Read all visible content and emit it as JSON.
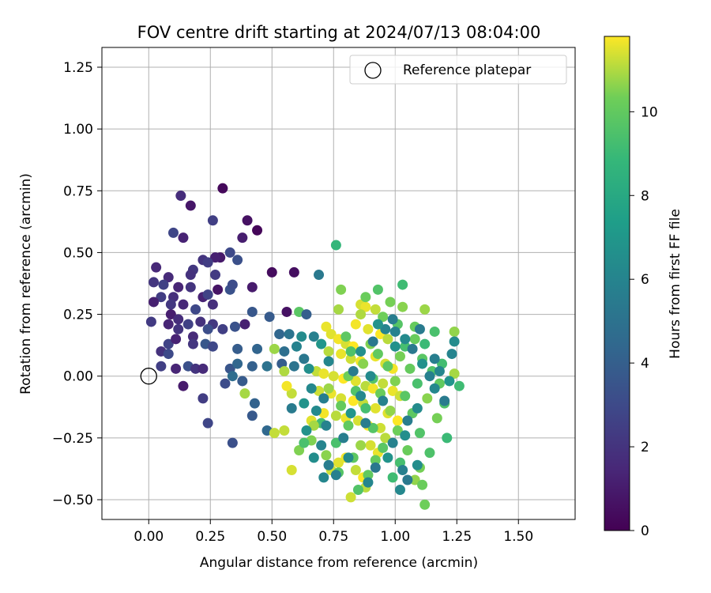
{
  "chart_data": {
    "type": "scatter",
    "title": "FOV centre drift starting at 2024/07/13 08:04:00",
    "xlabel": "Angular distance from reference (arcmin)",
    "ylabel": "Rotation from reference (arcmin)",
    "xlim": [
      -0.19,
      1.73
    ],
    "ylim": [
      -0.58,
      1.33
    ],
    "xticks": [
      "0.00",
      "0.25",
      "0.50",
      "0.75",
      "1.00",
      "1.25",
      "1.50"
    ],
    "xtick_values": [
      0,
      0.25,
      0.5,
      0.75,
      1.0,
      1.25,
      1.5
    ],
    "yticks": [
      "−0.50",
      "−0.25",
      "0.00",
      "0.25",
      "0.50",
      "0.75",
      "1.00",
      "1.25"
    ],
    "ytick_values": [
      -0.5,
      -0.25,
      0,
      0.25,
      0.5,
      0.75,
      1.0,
      1.25
    ],
    "grid": true,
    "legend": {
      "placement": "top-right",
      "label": "Reference platepar"
    },
    "reference_point": {
      "x": 0.0,
      "y": 0.0
    },
    "colorbar": {
      "label": "Hours from first FF file",
      "range": [
        0,
        11.8
      ],
      "ticks": [
        "0",
        "2",
        "4",
        "6",
        "8",
        "10"
      ],
      "tick_values": [
        0,
        2,
        4,
        6,
        8,
        10
      ],
      "colormap": "viridis"
    },
    "point_columns": [
      "x",
      "y",
      "hours"
    ],
    "points": [
      [
        0.3,
        0.76,
        0.3
      ],
      [
        0.13,
        0.73,
        1.7
      ],
      [
        0.17,
        0.69,
        0.8
      ],
      [
        0.26,
        0.63,
        2.5
      ],
      [
        0.4,
        0.63,
        0.6
      ],
      [
        0.44,
        0.59,
        0.2
      ],
      [
        0.1,
        0.58,
        2.8
      ],
      [
        0.14,
        0.56,
        1.3
      ],
      [
        0.38,
        0.56,
        1.1
      ],
      [
        0.33,
        0.5,
        3.0
      ],
      [
        0.29,
        0.48,
        0.9
      ],
      [
        0.27,
        0.48,
        1.2
      ],
      [
        0.22,
        0.47,
        2.0
      ],
      [
        0.36,
        0.47,
        3.3
      ],
      [
        0.24,
        0.46,
        2.4
      ],
      [
        0.18,
        0.43,
        2.2
      ],
      [
        0.03,
        0.44,
        1.5
      ],
      [
        0.17,
        0.41,
        1.9
      ],
      [
        0.08,
        0.4,
        1.6
      ],
      [
        0.27,
        0.41,
        2.3
      ],
      [
        0.5,
        0.42,
        0.4
      ],
      [
        0.59,
        0.42,
        0.5
      ],
      [
        0.02,
        0.38,
        2.1
      ],
      [
        0.06,
        0.37,
        2.6
      ],
      [
        0.12,
        0.36,
        1.4
      ],
      [
        0.17,
        0.36,
        2.0
      ],
      [
        0.28,
        0.35,
        0.7
      ],
      [
        0.33,
        0.35,
        3.4
      ],
      [
        0.42,
        0.36,
        1.0
      ],
      [
        0.05,
        0.32,
        2.4
      ],
      [
        0.1,
        0.32,
        1.8
      ],
      [
        0.22,
        0.32,
        1.3
      ],
      [
        0.24,
        0.33,
        2.7
      ],
      [
        0.34,
        0.37,
        3.1
      ],
      [
        0.69,
        0.41,
        5.4
      ],
      [
        0.02,
        0.3,
        1.2
      ],
      [
        0.09,
        0.29,
        2.2
      ],
      [
        0.14,
        0.29,
        1.5
      ],
      [
        0.19,
        0.27,
        2.9
      ],
      [
        0.26,
        0.29,
        1.8
      ],
      [
        0.42,
        0.26,
        3.6
      ],
      [
        0.56,
        0.26,
        0.6
      ],
      [
        0.61,
        0.26,
        9.8
      ],
      [
        0.64,
        0.25,
        4.0
      ],
      [
        0.09,
        0.25,
        1.1
      ],
      [
        0.12,
        0.23,
        1.7
      ],
      [
        0.01,
        0.22,
        2.3
      ],
      [
        0.08,
        0.21,
        1.4
      ],
      [
        0.16,
        0.21,
        2.6
      ],
      [
        0.21,
        0.22,
        1.9
      ],
      [
        0.26,
        0.21,
        2.2
      ],
      [
        0.35,
        0.2,
        3.4
      ],
      [
        0.39,
        0.21,
        1.2
      ],
      [
        0.49,
        0.24,
        3.8
      ],
      [
        0.53,
        0.17,
        4.4
      ],
      [
        0.12,
        0.19,
        2.0
      ],
      [
        0.18,
        0.16,
        1.6
      ],
      [
        0.24,
        0.19,
        3.2
      ],
      [
        0.3,
        0.19,
        2.5
      ],
      [
        0.57,
        0.17,
        5.1
      ],
      [
        0.08,
        0.13,
        2.7
      ],
      [
        0.11,
        0.15,
        1.3
      ],
      [
        0.18,
        0.13,
        2.1
      ],
      [
        0.23,
        0.13,
        3.6
      ],
      [
        0.26,
        0.12,
        2.9
      ],
      [
        0.05,
        0.1,
        1.9
      ],
      [
        0.08,
        0.09,
        3.0
      ],
      [
        0.36,
        0.11,
        3.9
      ],
      [
        0.44,
        0.11,
        4.3
      ],
      [
        0.51,
        0.11,
        10.8
      ],
      [
        0.55,
        0.1,
        4.8
      ],
      [
        0.05,
        0.04,
        2.5
      ],
      [
        0.11,
        0.03,
        1.4
      ],
      [
        0.16,
        0.04,
        3.3
      ],
      [
        0.19,
        0.03,
        2.0
      ],
      [
        0.22,
        0.03,
        1.6
      ],
      [
        0.33,
        0.03,
        3.5
      ],
      [
        0.36,
        0.05,
        4.4
      ],
      [
        0.42,
        0.04,
        4.1
      ],
      [
        0.48,
        0.04,
        5.0
      ],
      [
        0.54,
        0.05,
        3.9
      ],
      [
        0.34,
        0.0,
        4.7
      ],
      [
        0.38,
        -0.02,
        3.8
      ],
      [
        0.31,
        -0.03,
        3.1
      ],
      [
        0.14,
        -0.04,
        1.0
      ],
      [
        0.22,
        -0.09,
        2.4
      ],
      [
        0.39,
        -0.07,
        10.9
      ],
      [
        0.43,
        -0.11,
        4.2
      ],
      [
        0.42,
        -0.16,
        3.7
      ],
      [
        0.24,
        -0.19,
        2.8
      ],
      [
        0.48,
        -0.22,
        4.5
      ],
      [
        0.51,
        -0.23,
        11.2
      ],
      [
        0.34,
        -0.27,
        3.3
      ],
      [
        0.76,
        0.53,
        8.8
      ],
      [
        0.72,
        0.2,
        11.6
      ],
      [
        0.74,
        0.17,
        11.5
      ],
      [
        0.77,
        0.15,
        11.7
      ],
      [
        0.8,
        0.13,
        11.4
      ],
      [
        0.83,
        0.12,
        11.8
      ],
      [
        0.7,
        0.13,
        10.9
      ],
      [
        0.73,
        0.1,
        11.1
      ],
      [
        0.78,
        0.09,
        11.6
      ],
      [
        0.82,
        0.07,
        11.3
      ],
      [
        0.86,
        0.06,
        11.7
      ],
      [
        0.68,
        0.02,
        11.2
      ],
      [
        0.71,
        0.01,
        11.6
      ],
      [
        0.75,
        0.0,
        11.4
      ],
      [
        0.79,
        -0.01,
        11.8
      ],
      [
        0.84,
        -0.02,
        11.5
      ],
      [
        0.88,
        -0.04,
        11.1
      ],
      [
        0.91,
        -0.05,
        11.7
      ],
      [
        0.69,
        -0.06,
        11.3
      ],
      [
        0.74,
        -0.07,
        11.6
      ],
      [
        0.78,
        -0.09,
        11.4
      ],
      [
        0.83,
        -0.1,
        11.8
      ],
      [
        0.87,
        -0.11,
        11.2
      ],
      [
        0.92,
        -0.13,
        11.5
      ],
      [
        0.71,
        -0.15,
        11.7
      ],
      [
        0.76,
        -0.16,
        11.1
      ],
      [
        0.8,
        -0.17,
        11.6
      ],
      [
        0.85,
        -0.18,
        11.4
      ],
      [
        0.89,
        -0.2,
        11.8
      ],
      [
        0.94,
        -0.21,
        11.3
      ],
      [
        0.66,
        -0.18,
        11.5
      ],
      [
        0.58,
        -0.07,
        11.2
      ],
      [
        0.56,
        -0.04,
        11.7
      ],
      [
        0.55,
        0.02,
        11.0
      ],
      [
        0.55,
        -0.22,
        11.2
      ],
      [
        0.58,
        -0.38,
        11.4
      ],
      [
        0.87,
        -0.41,
        11.8
      ],
      [
        0.88,
        -0.45,
        11.1
      ],
      [
        0.82,
        -0.49,
        11.3
      ],
      [
        0.86,
        0.29,
        11.4
      ],
      [
        0.88,
        0.28,
        11.6
      ],
      [
        0.92,
        0.27,
        11.2
      ],
      [
        0.84,
        0.21,
        11.7
      ],
      [
        0.89,
        0.19,
        11.5
      ],
      [
        0.94,
        0.17,
        11.8
      ],
      [
        0.97,
        0.15,
        11.1
      ],
      [
        0.92,
        0.08,
        11.6
      ],
      [
        0.96,
        0.05,
        11.4
      ],
      [
        0.99,
        0.03,
        11.7
      ],
      [
        0.95,
        -0.03,
        11.2
      ],
      [
        0.99,
        -0.06,
        11.6
      ],
      [
        1.02,
        -0.08,
        11.3
      ],
      [
        0.97,
        -0.15,
        11.5
      ],
      [
        1.01,
        -0.18,
        11.8
      ],
      [
        0.9,
        -0.28,
        11.4
      ],
      [
        0.93,
        -0.31,
        11.6
      ],
      [
        0.96,
        -0.25,
        11.1
      ],
      [
        0.8,
        -0.33,
        11.7
      ],
      [
        0.74,
        -0.38,
        11.3
      ],
      [
        0.77,
        -0.35,
        11.5
      ],
      [
        0.84,
        -0.38,
        11.2
      ],
      [
        0.78,
        0.35,
        10.5
      ],
      [
        0.88,
        0.32,
        10.2
      ],
      [
        0.93,
        0.35,
        9.6
      ],
      [
        0.98,
        0.3,
        10.4
      ],
      [
        1.03,
        0.37,
        9.1
      ],
      [
        1.03,
        0.28,
        10.6
      ],
      [
        1.12,
        0.27,
        10.8
      ],
      [
        0.77,
        0.27,
        10.9
      ],
      [
        0.86,
        0.25,
        11.0
      ],
      [
        0.95,
        0.24,
        10.3
      ],
      [
        1.01,
        0.21,
        9.7
      ],
      [
        1.08,
        0.2,
        10.1
      ],
      [
        1.16,
        0.18,
        9.4
      ],
      [
        1.24,
        0.18,
        10.7
      ],
      [
        0.8,
        0.16,
        9.9
      ],
      [
        0.9,
        0.13,
        10.5
      ],
      [
        1.04,
        0.12,
        9.3
      ],
      [
        1.08,
        0.15,
        10.2
      ],
      [
        1.12,
        0.13,
        9.0
      ],
      [
        0.82,
        0.1,
        9.5
      ],
      [
        0.93,
        0.09,
        10.0
      ],
      [
        1.02,
        0.08,
        10.4
      ],
      [
        1.11,
        0.07,
        9.8
      ],
      [
        1.19,
        0.05,
        9.2
      ],
      [
        0.87,
        0.05,
        10.6
      ],
      [
        0.97,
        0.04,
        9.9
      ],
      [
        1.06,
        0.03,
        10.1
      ],
      [
        1.15,
        0.02,
        9.6
      ],
      [
        1.24,
        0.01,
        10.9
      ],
      [
        0.81,
        0.0,
        10.3
      ],
      [
        0.91,
        -0.01,
        9.7
      ],
      [
        1.0,
        -0.02,
        10.5
      ],
      [
        1.09,
        -0.03,
        9.4
      ],
      [
        1.18,
        -0.03,
        10.0
      ],
      [
        1.26,
        -0.04,
        9.1
      ],
      [
        0.73,
        -0.05,
        10.8
      ],
      [
        0.84,
        -0.06,
        9.6
      ],
      [
        0.94,
        -0.07,
        10.2
      ],
      [
        1.04,
        -0.08,
        9.8
      ],
      [
        1.13,
        -0.09,
        10.6
      ],
      [
        1.2,
        -0.11,
        9.5
      ],
      [
        0.78,
        -0.12,
        10.1
      ],
      [
        0.88,
        -0.13,
        9.3
      ],
      [
        0.98,
        -0.14,
        10.7
      ],
      [
        1.07,
        -0.15,
        9.9
      ],
      [
        1.17,
        -0.17,
        10.4
      ],
      [
        0.7,
        -0.19,
        9.2
      ],
      [
        0.81,
        -0.2,
        10.0
      ],
      [
        0.91,
        -0.21,
        9.7
      ],
      [
        1.01,
        -0.22,
        10.3
      ],
      [
        1.1,
        -0.23,
        9.6
      ],
      [
        1.21,
        -0.25,
        9.0
      ],
      [
        0.66,
        -0.26,
        10.5
      ],
      [
        0.76,
        -0.27,
        9.4
      ],
      [
        0.86,
        -0.28,
        10.8
      ],
      [
        0.95,
        -0.29,
        9.8
      ],
      [
        1.05,
        -0.3,
        10.2
      ],
      [
        1.14,
        -0.31,
        9.5
      ],
      [
        0.72,
        -0.32,
        10.6
      ],
      [
        0.83,
        -0.33,
        9.9
      ],
      [
        0.92,
        -0.34,
        10.1
      ],
      [
        1.02,
        -0.35,
        9.3
      ],
      [
        1.1,
        -0.37,
        10.4
      ],
      [
        0.77,
        -0.39,
        9.7
      ],
      [
        0.89,
        -0.4,
        10.0
      ],
      [
        0.99,
        -0.41,
        9.1
      ],
      [
        1.08,
        -0.42,
        10.7
      ],
      [
        0.85,
        -0.46,
        9.6
      ],
      [
        1.12,
        -0.52,
        10.3
      ],
      [
        0.61,
        -0.3,
        10.5
      ],
      [
        0.63,
        -0.27,
        9.4
      ],
      [
        0.67,
        -0.2,
        10.9
      ],
      [
        1.11,
        -0.44,
        10.2
      ],
      [
        0.62,
        0.16,
        6.4
      ],
      [
        0.67,
        0.16,
        5.8
      ],
      [
        0.7,
        0.13,
        6.9
      ],
      [
        0.73,
        0.06,
        6.1
      ],
      [
        0.63,
        0.07,
        5.3
      ],
      [
        0.6,
        0.12,
        5.9
      ],
      [
        0.65,
        0.03,
        6.6
      ],
      [
        0.59,
        0.04,
        5.1
      ],
      [
        0.66,
        -0.05,
        6.2
      ],
      [
        0.71,
        -0.09,
        5.7
      ],
      [
        0.63,
        -0.11,
        6.8
      ],
      [
        0.58,
        -0.13,
        5.5
      ],
      [
        0.68,
        -0.14,
        6.3
      ],
      [
        0.72,
        -0.2,
        5.9
      ],
      [
        0.64,
        -0.22,
        6.7
      ],
      [
        0.7,
        -0.28,
        6.0
      ],
      [
        0.67,
        -0.33,
        6.5
      ],
      [
        0.73,
        -0.36,
        5.6
      ],
      [
        0.71,
        -0.41,
        6.1
      ],
      [
        0.76,
        -0.4,
        5.8
      ],
      [
        0.81,
        -0.33,
        6.4
      ],
      [
        0.79,
        -0.25,
        5.7
      ],
      [
        0.82,
        -0.15,
        6.9
      ],
      [
        0.86,
        -0.08,
        6.2
      ],
      [
        0.83,
        0.02,
        5.5
      ],
      [
        0.86,
        0.1,
        6.6
      ],
      [
        0.91,
        0.14,
        5.3
      ],
      [
        0.96,
        0.19,
        6.0
      ],
      [
        0.99,
        0.23,
        5.6
      ],
      [
        0.93,
        0.21,
        6.8
      ],
      [
        1.0,
        0.18,
        5.9
      ],
      [
        1.04,
        0.15,
        6.3
      ],
      [
        1.07,
        0.11,
        5.4
      ],
      [
        1.11,
        0.05,
        6.7
      ],
      [
        1.14,
        0.0,
        5.8
      ],
      [
        1.16,
        -0.05,
        6.2
      ],
      [
        1.2,
        -0.1,
        5.5
      ],
      [
        1.22,
        -0.02,
        6.9
      ],
      [
        1.18,
        0.02,
        6.1
      ],
      [
        1.16,
        0.07,
        5.7
      ],
      [
        1.09,
        -0.13,
        6.4
      ],
      [
        1.05,
        -0.18,
        5.6
      ],
      [
        1.04,
        -0.24,
        6.6
      ],
      [
        0.99,
        -0.27,
        5.9
      ],
      [
        0.97,
        -0.33,
        6.8
      ],
      [
        0.92,
        -0.37,
        5.3
      ],
      [
        0.89,
        -0.43,
        6.1
      ],
      [
        1.03,
        -0.38,
        5.8
      ],
      [
        1.09,
        -0.36,
        6.5
      ],
      [
        1.05,
        -0.42,
        5.4
      ],
      [
        1.02,
        -0.46,
        6.2
      ],
      [
        1.0,
        0.12,
        6.7
      ],
      [
        1.1,
        0.19,
        5.5
      ],
      [
        1.23,
        0.09,
        6.0
      ],
      [
        1.24,
        0.14,
        6.4
      ],
      [
        0.95,
        -0.1,
        5.9
      ],
      [
        0.9,
        0.0,
        6.3
      ],
      [
        0.88,
        -0.19,
        5.6
      ]
    ]
  }
}
